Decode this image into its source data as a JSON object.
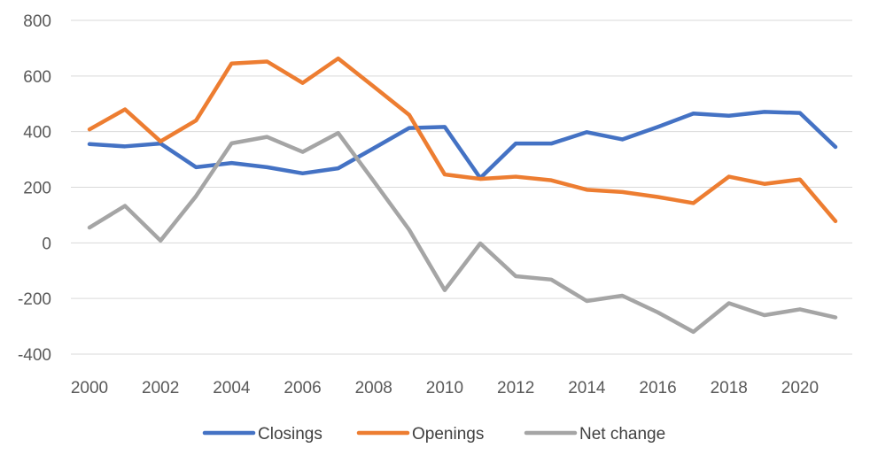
{
  "chart_data": {
    "type": "line",
    "x": [
      2000,
      2001,
      2002,
      2003,
      2004,
      2005,
      2006,
      2007,
      2008,
      2009,
      2010,
      2011,
      2012,
      2013,
      2014,
      2015,
      2016,
      2017,
      2018,
      2019,
      2020,
      2021
    ],
    "x_tick_labels": [
      "2000",
      "2002",
      "2004",
      "2006",
      "2008",
      "2010",
      "2012",
      "2014",
      "2016",
      "2018",
      "2020"
    ],
    "y_tick_labels": [
      "800",
      "600",
      "400",
      "200",
      "0",
      "-200",
      "-400"
    ],
    "ylim": [
      -400,
      800
    ],
    "grid": "horizontal",
    "legend_position": "bottom",
    "series": [
      {
        "name": "Closings",
        "color": "#4472C4",
        "values": [
          355,
          347,
          357,
          272,
          287,
          272,
          250,
          268,
          340,
          413,
          417,
          233,
          357,
          357,
          398,
          372,
          417,
          465,
          457,
          471,
          467,
          345
        ]
      },
      {
        "name": "Openings",
        "color": "#ED7D31",
        "values": [
          408,
          480,
          365,
          440,
          645,
          652,
          575,
          663,
          562,
          460,
          246,
          230,
          238,
          225,
          191,
          183,
          165,
          143,
          238,
          212,
          228,
          78
        ]
      },
      {
        "name": "Net change",
        "color": "#A5A5A5",
        "values": [
          55,
          133,
          8,
          168,
          358,
          381,
          327,
          395,
          222,
          47,
          -170,
          -2,
          -120,
          -132,
          -209,
          -190,
          -250,
          -320,
          -217,
          -260,
          -239,
          -268
        ]
      }
    ]
  }
}
